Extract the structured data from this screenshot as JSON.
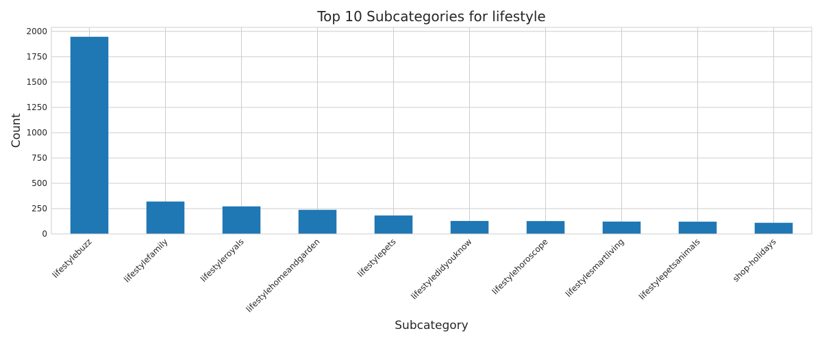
{
  "chart_data": {
    "type": "bar",
    "title": "Top 10 Subcategories for lifestyle",
    "xlabel": "Subcategory",
    "ylabel": "Count",
    "categories": [
      "lifestylebuzz",
      "lifestylefamily",
      "lifestyleroyals",
      "lifestylehomeandgarden",
      "lifestylepets",
      "lifestyledidyouknow",
      "lifestylehoroscope",
      "lifestylesmartliving",
      "lifestylepetsanimals",
      "shop-holidays"
    ],
    "values": [
      1947,
      320,
      272,
      238,
      182,
      128,
      127,
      122,
      121,
      110
    ],
    "ylim": [
      0,
      2040
    ],
    "yticks": [
      0,
      250,
      500,
      750,
      1000,
      1250,
      1500,
      1750,
      2000
    ],
    "grid": true,
    "bar_color": "#1f77b4",
    "grid_color": "#cccccc"
  }
}
